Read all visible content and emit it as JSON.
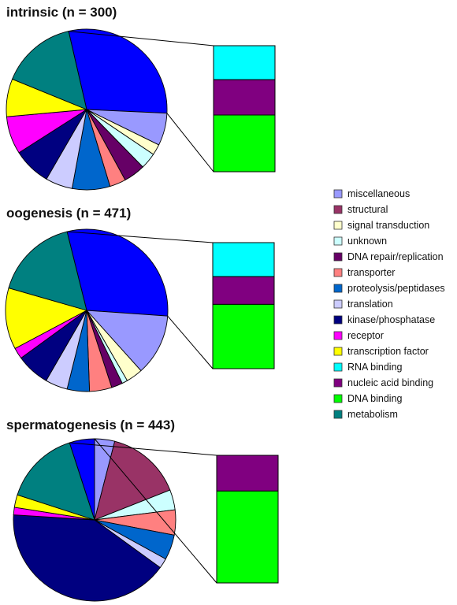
{
  "legend": {
    "items": [
      {
        "label": "miscellaneous",
        "color": "#9999ff"
      },
      {
        "label": "structural",
        "color": "#993366"
      },
      {
        "label": "signal transduction",
        "color": "#ffffcc"
      },
      {
        "label": "unknown",
        "color": "#ccffff"
      },
      {
        "label": "DNA repair/replication",
        "color": "#660066"
      },
      {
        "label": "transporter",
        "color": "#ff8080"
      },
      {
        "label": "proteolysis/peptidases",
        "color": "#0066cc"
      },
      {
        "label": "translation",
        "color": "#ccccff"
      },
      {
        "label": "kinase/phosphatase",
        "color": "#000080"
      },
      {
        "label": "receptor",
        "color": "#ff00ff"
      },
      {
        "label": "transcription factor",
        "color": "#ffff00"
      },
      {
        "label": "RNA binding",
        "color": "#00ffff"
      },
      {
        "label": "nucleic acid binding",
        "color": "#800080"
      },
      {
        "label": "DNA binding",
        "color": "#00ff00"
      },
      {
        "label": "metabolism",
        "color": "#008080"
      }
    ]
  },
  "chart_data": [
    {
      "type": "pie",
      "title": "intrinsic (n = 300)",
      "slices": [
        {
          "category": "nucleic acid binding (aggregate)",
          "value": 27,
          "color": "#0000ff"
        },
        {
          "category": "miscellaneous",
          "value": 6,
          "color": "#9999ff"
        },
        {
          "category": "signal transduction",
          "value": 2,
          "color": "#ffffcc"
        },
        {
          "category": "unknown",
          "value": 3,
          "color": "#ccffff"
        },
        {
          "category": "DNA repair/replication",
          "value": 4,
          "color": "#660066"
        },
        {
          "category": "transporter",
          "value": 3,
          "color": "#ff8080"
        },
        {
          "category": "proteolysis/peptidases",
          "value": 7,
          "color": "#0066cc"
        },
        {
          "category": "translation",
          "value": 5,
          "color": "#ccccff"
        },
        {
          "category": "kinase/phosphatase",
          "value": 7,
          "color": "#000080"
        },
        {
          "category": "receptor",
          "value": 7,
          "color": "#ff00ff"
        },
        {
          "category": "transcription factor",
          "value": 7,
          "color": "#ffff00"
        },
        {
          "category": "metabolism",
          "value": 14,
          "color": "#008080"
        }
      ],
      "breakdown": [
        {
          "category": "RNA binding",
          "value": 27,
          "color": "#00ffff"
        },
        {
          "category": "nucleic acid binding",
          "value": 28,
          "color": "#800080"
        },
        {
          "category": "DNA binding",
          "value": 45,
          "color": "#00ff00"
        }
      ]
    },
    {
      "type": "pie",
      "title": "oogenesis (n = 471)",
      "slices": [
        {
          "category": "nucleic acid binding (aggregate)",
          "value": 27,
          "color": "#0000ff"
        },
        {
          "category": "miscellaneous",
          "value": 11,
          "color": "#9999ff"
        },
        {
          "category": "signal transduction",
          "value": 3,
          "color": "#ffffcc"
        },
        {
          "category": "unknown",
          "value": 1,
          "color": "#ccffff"
        },
        {
          "category": "DNA repair/replication",
          "value": 2,
          "color": "#660066"
        },
        {
          "category": "transporter",
          "value": 4,
          "color": "#ff8080"
        },
        {
          "category": "proteolysis/peptidases",
          "value": 4,
          "color": "#0066cc"
        },
        {
          "category": "translation",
          "value": 4,
          "color": "#ccccff"
        },
        {
          "category": "kinase/phosphatase",
          "value": 6,
          "color": "#000080"
        },
        {
          "category": "receptor",
          "value": 2,
          "color": "#ff00ff"
        },
        {
          "category": "transcription factor",
          "value": 11,
          "color": "#ffff00"
        },
        {
          "category": "metabolism",
          "value": 15,
          "color": "#008080"
        }
      ],
      "breakdown": [
        {
          "category": "RNA binding",
          "value": 27,
          "color": "#00ffff"
        },
        {
          "category": "nucleic acid binding",
          "value": 22,
          "color": "#800080"
        },
        {
          "category": "DNA binding",
          "value": 51,
          "color": "#00ff00"
        }
      ]
    },
    {
      "type": "pie",
      "title": "spermatogenesis (n = 443)",
      "slices": [
        {
          "category": "nucleic acid binding (aggregate)",
          "value": 5,
          "color": "#0000ff"
        },
        {
          "category": "miscellaneous",
          "value": 4,
          "color": "#9999ff"
        },
        {
          "category": "structural",
          "value": 15,
          "color": "#993366"
        },
        {
          "category": "unknown",
          "value": 4,
          "color": "#ccffff"
        },
        {
          "category": "transporter",
          "value": 5,
          "color": "#ff8080"
        },
        {
          "category": "proteolysis/peptidases",
          "value": 5,
          "color": "#0066cc"
        },
        {
          "category": "translation",
          "value": 2,
          "color": "#ccccff"
        },
        {
          "category": "kinase/phosphatase",
          "value": 41,
          "color": "#000080"
        },
        {
          "category": "receptor",
          "value": 1.5,
          "color": "#ff00ff"
        },
        {
          "category": "transcription factor",
          "value": 2.5,
          "color": "#ffff00"
        },
        {
          "category": "metabolism",
          "value": 15,
          "color": "#008080"
        }
      ],
      "breakdown": [
        {
          "category": "nucleic acid binding",
          "value": 28,
          "color": "#800080"
        },
        {
          "category": "DNA binding",
          "value": 72,
          "color": "#00ff00"
        }
      ]
    }
  ]
}
